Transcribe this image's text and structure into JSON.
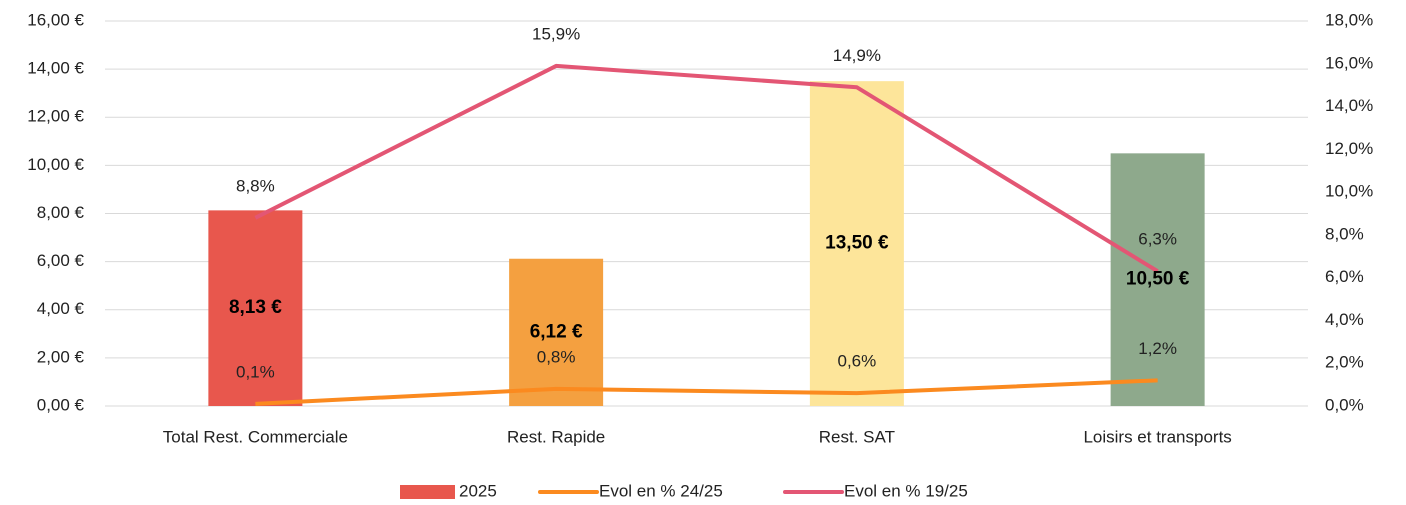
{
  "chart_data": {
    "type": "bar",
    "categories": [
      "Total Rest. Commerciale",
      "Rest. Rapide",
      "Rest. SAT",
      "Loisirs et transports"
    ],
    "series": [
      {
        "name": "2025",
        "type": "bar",
        "colors": [
          "#e8574d",
          "#f4a040",
          "#fde59a",
          "#8ea98c"
        ],
        "values": [
          8.13,
          6.12,
          13.5,
          10.5
        ],
        "value_labels": [
          "8,13 €",
          "6,12 €",
          "13,50 €",
          "10,50 €"
        ]
      },
      {
        "name": "Evol en % 24/25",
        "type": "line",
        "axis": "y2",
        "color": "#fb8a1f",
        "values": [
          0.1,
          0.8,
          0.6,
          1.2
        ],
        "value_labels": [
          "0,1%",
          "0,8%",
          "0,6%",
          "1,2%"
        ]
      },
      {
        "name": "Evol en % 19/25",
        "type": "line",
        "axis": "y2",
        "color": "#e35674",
        "values": [
          8.8,
          15.9,
          14.9,
          6.3
        ],
        "value_labels": [
          "8,8%",
          "15,9%",
          "14,9%",
          "6,3%"
        ]
      }
    ],
    "ylim": [
      0,
      16
    ],
    "yticks": [
      {
        "value": 0,
        "label": "0,00 €"
      },
      {
        "value": 2,
        "label": "2,00 €"
      },
      {
        "value": 4,
        "label": "4,00 €"
      },
      {
        "value": 6,
        "label": "6,00 €"
      },
      {
        "value": 8,
        "label": "8,00 €"
      },
      {
        "value": 10,
        "label": "10,00 €"
      },
      {
        "value": 12,
        "label": "12,00 €"
      },
      {
        "value": 14,
        "label": "14,00 €"
      },
      {
        "value": 16,
        "label": "16,00 €"
      }
    ],
    "y2lim": [
      0,
      18
    ],
    "y2ticks": [
      {
        "value": 0,
        "label": "0,0%"
      },
      {
        "value": 2,
        "label": "2,0%"
      },
      {
        "value": 4,
        "label": "4,0%"
      },
      {
        "value": 6,
        "label": "6,0%"
      },
      {
        "value": 8,
        "label": "8,0%"
      },
      {
        "value": 10,
        "label": "10,0%"
      },
      {
        "value": 12,
        "label": "12,0%"
      },
      {
        "value": 14,
        "label": "14,0%"
      },
      {
        "value": 16,
        "label": "16,0%"
      },
      {
        "value": 18,
        "label": "18,0%"
      }
    ],
    "grid": true,
    "legend": "bottom"
  }
}
